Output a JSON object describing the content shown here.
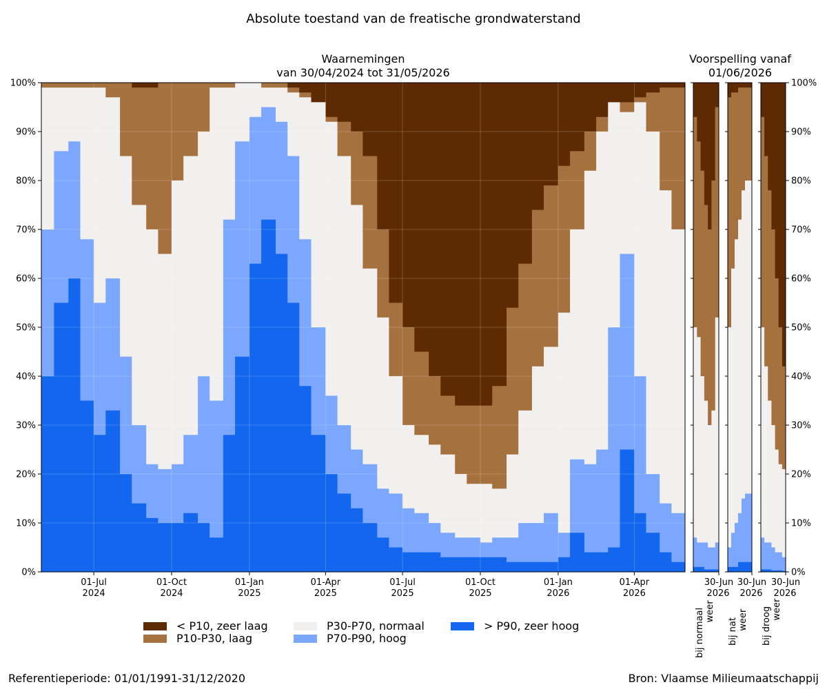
{
  "title": "Absolute toestand van de freatische grondwaterstand",
  "observations_title": [
    "Waarnemingen",
    "van 30/04/2024 tot 31/05/2026"
  ],
  "forecast_title": [
    "Voorspelling vanaf",
    "01/06/2026"
  ],
  "footer": {
    "reference": "Referentieperiode: 01/01/1991-31/12/2020",
    "source": "Bron: Vlaamse Milieumaatschappij"
  },
  "colors": {
    "zeer_laag": "#5e2a02",
    "laag": "#a5713f",
    "normaal": "#f2f0ef",
    "hoog": "#7ba7ff",
    "zeer_hoog": "#1366ee"
  },
  "legend": [
    {
      "key": "zeer_laag",
      "label": "< P10, zeer laag"
    },
    {
      "key": "laag",
      "label": "P10-P30, laag"
    },
    {
      "key": "normaal",
      "label": "P30-P70, normaal"
    },
    {
      "key": "hoog",
      "label": "P70-P90, hoog"
    },
    {
      "key": "zeer_hoog",
      "label": "> P90, zeer hoog"
    }
  ],
  "chart_data": {
    "type": "area",
    "stacked": true,
    "y_unit": "percent of wells",
    "ylim": [
      0,
      100
    ],
    "y_ticks": [
      "0%",
      "10%",
      "20%",
      "30%",
      "40%",
      "50%",
      "60%",
      "70%",
      "80%",
      "90%",
      "100%"
    ],
    "grid": true,
    "legend_position": "bottom",
    "observations": {
      "x_range": [
        "2024-04-30",
        "2026-05-31"
      ],
      "x_ticks": [
        {
          "date": "2024-07-01",
          "label": [
            "01-Jul",
            "2024"
          ]
        },
        {
          "date": "2024-10-01",
          "label": [
            "01-Oct",
            "2024"
          ]
        },
        {
          "date": "2025-01-01",
          "label": [
            "01-Jan",
            "2025"
          ]
        },
        {
          "date": "2025-04-01",
          "label": [
            "01-Apr",
            "2025"
          ]
        },
        {
          "date": "2025-07-01",
          "label": [
            "01-Jul",
            "2025"
          ]
        },
        {
          "date": "2025-10-01",
          "label": [
            "01-Oct",
            "2025"
          ]
        },
        {
          "date": "2026-01-01",
          "label": [
            "01-Jan",
            "2026"
          ]
        },
        {
          "date": "2026-04-01",
          "label": [
            "01-Apr",
            "2026"
          ]
        }
      ],
      "dates": [
        "2024-04-30",
        "2024-05-15",
        "2024-06-01",
        "2024-06-15",
        "2024-07-01",
        "2024-07-15",
        "2024-08-01",
        "2024-08-15",
        "2024-09-01",
        "2024-09-15",
        "2024-10-01",
        "2024-10-15",
        "2024-11-01",
        "2024-11-15",
        "2024-12-01",
        "2024-12-15",
        "2025-01-01",
        "2025-01-15",
        "2025-02-01",
        "2025-02-15",
        "2025-03-01",
        "2025-03-15",
        "2025-04-01",
        "2025-04-15",
        "2025-05-01",
        "2025-05-15",
        "2025-06-01",
        "2025-06-15",
        "2025-07-01",
        "2025-07-15",
        "2025-08-01",
        "2025-08-15",
        "2025-09-01",
        "2025-09-15",
        "2025-10-01",
        "2025-10-15",
        "2025-11-01",
        "2025-11-15",
        "2025-12-01",
        "2025-12-15",
        "2026-01-01",
        "2026-01-15",
        "2026-02-01",
        "2026-02-15",
        "2026-03-01",
        "2026-03-15",
        "2026-04-01",
        "2026-04-15",
        "2026-05-01",
        "2026-05-15",
        "2026-05-31"
      ],
      "boundaries": {
        "zeer_hoog": [
          40,
          55,
          60,
          35,
          28,
          33,
          20,
          14,
          11,
          10,
          10,
          12,
          10,
          7,
          28,
          44,
          63,
          72,
          65,
          55,
          38,
          28,
          20,
          16,
          13,
          10,
          7,
          5,
          4,
          4,
          4,
          3,
          3,
          3,
          3,
          3,
          2,
          2,
          2,
          2,
          3,
          8,
          4,
          4,
          5,
          25,
          12,
          8,
          4,
          2,
          1
        ],
        "hoog": [
          70,
          86,
          88,
          68,
          55,
          60,
          44,
          30,
          22,
          21,
          22,
          28,
          40,
          35,
          72,
          88,
          93,
          95,
          92,
          85,
          68,
          50,
          36,
          30,
          25,
          22,
          17,
          16,
          13,
          12,
          10,
          8,
          7,
          7,
          6,
          7,
          7,
          10,
          10,
          12,
          8,
          23,
          22,
          25,
          50,
          65,
          40,
          20,
          14,
          12,
          8
        ],
        "normaal": [
          99,
          99,
          99,
          99,
          99,
          97,
          85,
          75,
          70,
          65,
          80,
          85,
          90,
          99,
          99,
          100,
          100,
          99,
          99,
          98,
          97,
          96,
          92,
          85,
          75,
          62,
          52,
          40,
          30,
          28,
          26,
          24,
          20,
          18,
          18,
          17,
          24,
          33,
          42,
          46,
          53,
          70,
          82,
          90,
          96,
          94,
          96,
          90,
          78,
          70,
          50
        ],
        "laag": [
          100,
          100,
          100,
          100,
          100,
          100,
          100,
          99,
          99,
          100,
          100,
          100,
          100,
          100,
          100,
          100,
          100,
          100,
          100,
          99,
          98,
          96,
          93,
          92,
          90,
          85,
          70,
          55,
          50,
          45,
          40,
          36,
          34,
          34,
          34,
          38,
          54,
          63,
          74,
          79,
          83,
          86,
          90,
          93,
          95,
          96,
          97,
          98,
          99,
          99,
          98
        ]
      }
    },
    "forecast_scenarios": [
      {
        "label": [
          "bij normaal",
          "weer"
        ],
        "x_tick": [
          "30-Jun",
          "2026"
        ],
        "boundaries": {
          "zeer_hoog": [
            1,
            1,
            1,
            0.5,
            0.5,
            0.5,
            0.5
          ],
          "hoog": [
            7,
            6,
            6,
            6,
            5,
            5,
            6
          ],
          "normaal": [
            50,
            48,
            40,
            35,
            30,
            33,
            52
          ],
          "laag": [
            93,
            88,
            82,
            75,
            70,
            80,
            95
          ]
        }
      },
      {
        "label": [
          "bij nat",
          "weer"
        ],
        "x_tick": [
          "30-Jun",
          "2026"
        ],
        "boundaries": {
          "zeer_hoog": [
            1,
            1,
            1,
            2,
            2,
            2,
            2
          ],
          "hoog": [
            5,
            8,
            10,
            12,
            15,
            16,
            16
          ],
          "normaal": [
            50,
            62,
            68,
            72,
            78,
            80,
            80
          ],
          "laag": [
            97,
            98,
            98,
            99,
            99,
            99,
            99
          ]
        }
      },
      {
        "label": [
          "bij droog",
          "weer"
        ],
        "x_tick": [
          "30-Jun",
          "2026"
        ],
        "boundaries": {
          "zeer_hoog": [
            0.5,
            0.5,
            0.5,
            0.3,
            0.3,
            0.3,
            0.2
          ],
          "hoog": [
            7,
            6,
            6,
            5,
            4,
            4,
            3
          ],
          "normaal": [
            50,
            42,
            35,
            30,
            25,
            22,
            21
          ],
          "laag": [
            93,
            85,
            78,
            70,
            60,
            50,
            42
          ]
        }
      }
    ]
  }
}
